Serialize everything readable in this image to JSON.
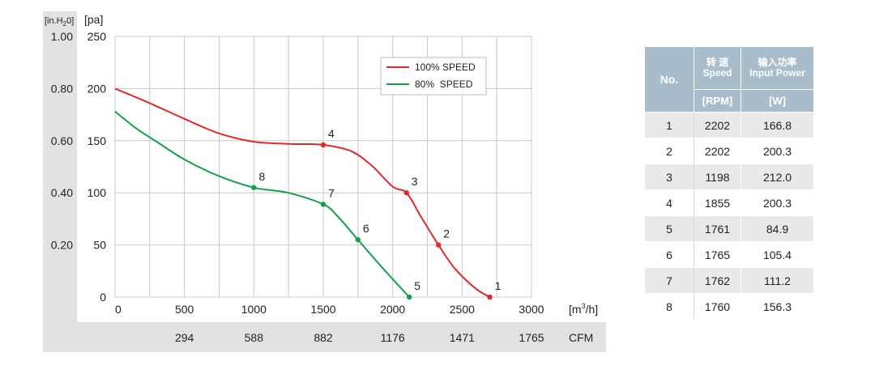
{
  "chart_data": {
    "type": "line",
    "x_unit_label": "[m³/h]",
    "x_unit_main": "[m",
    "x_unit_sup": "3",
    "x_unit_tail": "/h]",
    "y_unit_pa": "[pa]",
    "y_unit_inh2o_a": "[in.H",
    "y_unit_inh2o_sub": "2",
    "y_unit_inh2o_b": "0]",
    "secondary_x_unit": "CFM",
    "xlim": [
      0,
      3000
    ],
    "ylim": [
      0,
      250
    ],
    "x_ticks": [
      "0",
      "500",
      "1000",
      "1500",
      "2000",
      "2500",
      "3000"
    ],
    "y_ticks_pa": [
      "0",
      "50",
      "100",
      "150",
      "200",
      "250"
    ],
    "y_ticks_inh2o": [
      "",
      "0.20",
      "0.40",
      "0.60",
      "0.80",
      "1.00"
    ],
    "cfm_ticks": [
      "294",
      "588",
      "882",
      "1176",
      "1471",
      "1765"
    ],
    "grid": true,
    "legend_position": "top-right",
    "series": [
      {
        "name": "100% SPEED",
        "color": "#e02a2a",
        "x": [
          0,
          250,
          500,
          750,
          1000,
          1250,
          1500,
          1700,
          1850,
          2000,
          2100,
          2200,
          2330,
          2450,
          2600,
          2700
        ],
        "y": [
          200,
          186,
          171,
          157,
          149,
          147,
          146,
          140,
          126,
          106,
          100,
          78,
          50,
          27,
          8,
          0
        ]
      },
      {
        "name": "80%  SPEED",
        "color": "#16a04a",
        "x": [
          0,
          150,
          300,
          500,
          750,
          1000,
          1250,
          1500,
          1600,
          1750,
          1900,
          2050,
          2120
        ],
        "y": [
          178,
          162,
          149,
          132,
          116,
          105,
          100,
          89,
          78,
          55,
          32,
          10,
          0
        ]
      }
    ],
    "points": [
      {
        "label": "1",
        "x": 2700,
        "y": 0,
        "series": 0
      },
      {
        "label": "2",
        "x": 2330,
        "y": 50,
        "series": 0
      },
      {
        "label": "3",
        "x": 2100,
        "y": 100,
        "series": 0
      },
      {
        "label": "4",
        "x": 1500,
        "y": 146,
        "series": 0
      },
      {
        "label": "5",
        "x": 2120,
        "y": 0,
        "series": 1
      },
      {
        "label": "6",
        "x": 1750,
        "y": 55,
        "series": 1
      },
      {
        "label": "7",
        "x": 1500,
        "y": 89,
        "series": 1
      },
      {
        "label": "8",
        "x": 1000,
        "y": 105,
        "series": 1
      }
    ]
  },
  "table": {
    "col_no": "No.",
    "col_speed_cn": "转 速",
    "col_speed_en": "Speed",
    "col_power_cn": "输入功率",
    "col_power_en": "Input Power",
    "unit_speed": "[RPM]",
    "unit_power": "[W]",
    "rows": [
      {
        "no": "1",
        "rpm": "2202",
        "w": "166.8"
      },
      {
        "no": "2",
        "rpm": "2202",
        "w": "200.3"
      },
      {
        "no": "3",
        "rpm": "1198",
        "w": "212.0"
      },
      {
        "no": "4",
        "rpm": "1855",
        "w": "200.3"
      },
      {
        "no": "5",
        "rpm": "1761",
        "w": "84.9"
      },
      {
        "no": "6",
        "rpm": "1765",
        "w": "105.4"
      },
      {
        "no": "7",
        "rpm": "1762",
        "w": "111.2"
      },
      {
        "no": "8",
        "rpm": "1760",
        "w": "156.3"
      }
    ]
  }
}
